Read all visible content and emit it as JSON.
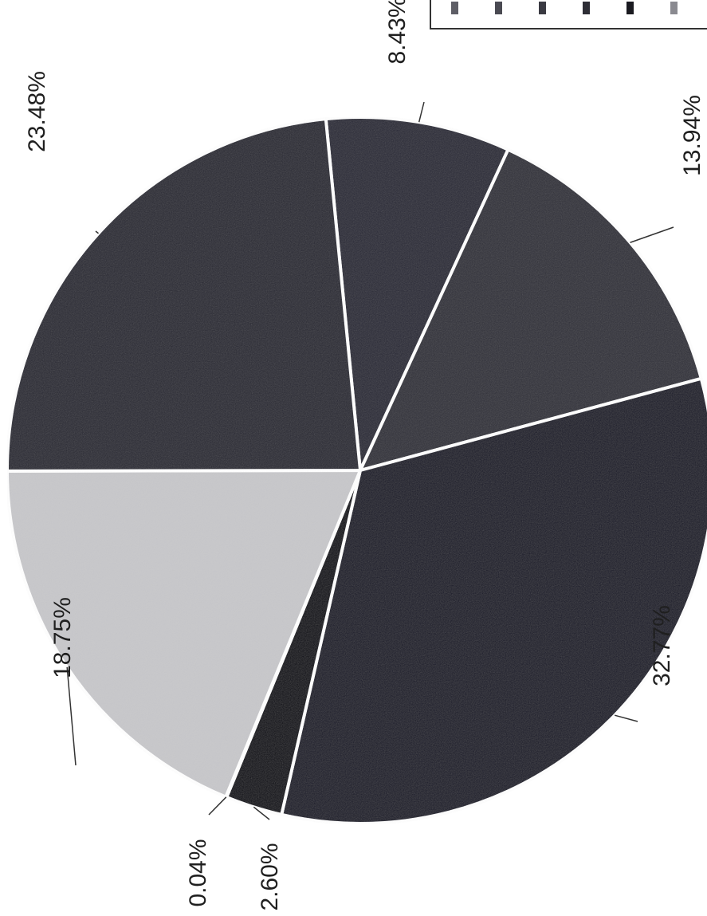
{
  "chart_data": {
    "type": "pie",
    "slices": [
      {
        "label": "8.43%",
        "value": 8.43,
        "color": "#2c2c37"
      },
      {
        "label": "13.94%",
        "value": 13.94,
        "color": "#32323a"
      },
      {
        "label": "32.77%",
        "value": 32.77,
        "color": "#1e1e29"
      },
      {
        "label": "2.60%",
        "value": 2.6,
        "color": "#101015"
      },
      {
        "label": "0.04%",
        "value": 0.04,
        "color": "#444444"
      },
      {
        "label": "18.75%",
        "value": 18.75,
        "color": "#c8c8cb"
      },
      {
        "label": "23.48%",
        "value": 23.48,
        "color": "#2a2a34"
      }
    ],
    "legend_swatch_colors": [
      "#5e5e66",
      "#4a4a52",
      "#3a3a42",
      "#2e2e36",
      "#1a1a20",
      "#8a8a90"
    ],
    "legend_position": "top-right (cropped)",
    "text_orientation": "rotated 90° counter-clockwise"
  }
}
